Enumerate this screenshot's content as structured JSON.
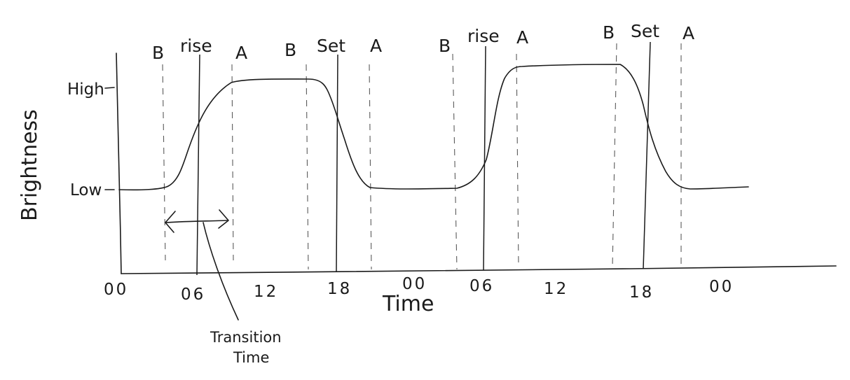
{
  "y_axis": {
    "title": "Brightness",
    "levels": [
      "High",
      "Low"
    ]
  },
  "x_axis": {
    "title": "Time",
    "ticks": [
      "00",
      "06",
      "12",
      "18",
      "00",
      "06",
      "12",
      "18",
      "00"
    ]
  },
  "markers": [
    "B",
    "rise",
    "A",
    "B",
    "Set",
    "A",
    "B",
    "rise",
    "A",
    "B",
    "Set",
    "A"
  ],
  "annotation": {
    "line1": "Transition",
    "line2": "Time"
  }
}
